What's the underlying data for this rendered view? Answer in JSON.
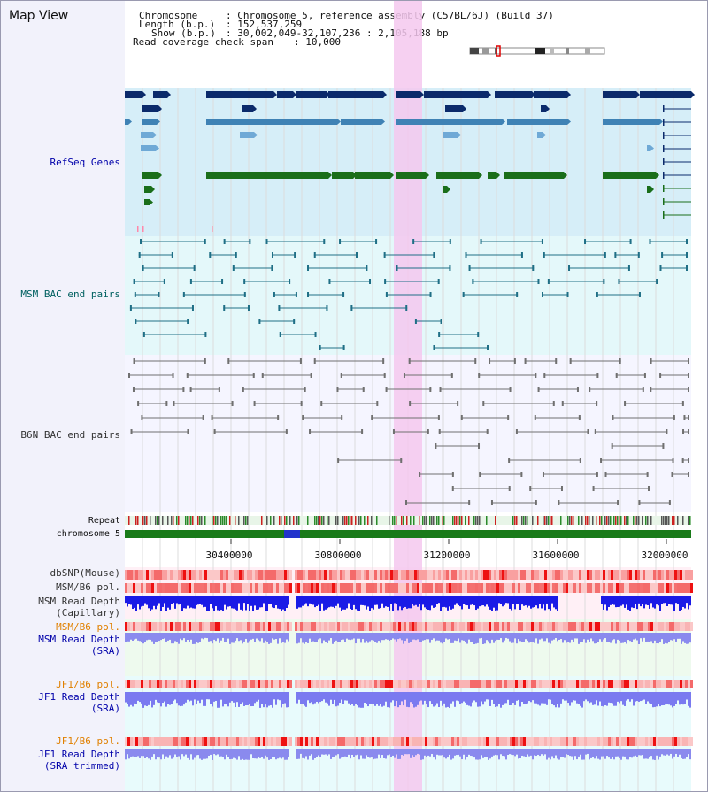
{
  "window": {
    "title": "Map View"
  },
  "header": {
    "chromosome_label": "Chromosome",
    "chromosome_value": ": Chromosome 5, reference assembly (C57BL/6J) (Build 37)",
    "length_label": "Length (b.p.)",
    "length_value": ": 152,537,259",
    "show_label": "Show (b.p.)",
    "show_value": ": 30,002,049-32,107,236 : 2,105,188 bp",
    "span_label": "Read coverage check span",
    "span_value": ": 10,000"
  },
  "tracks": {
    "refseq": "RefSeq Genes",
    "msm_bac": "MSM BAC end pairs",
    "b6n_bac": "B6N BAC end pairs",
    "repeat": "Repeat",
    "chromosome": "chromosome 5",
    "dbsnp": "dbSNP(Mouse)",
    "msm_b6_pol_1": "MSM/B6 pol.",
    "msm_read_depth_cap_1": "MSM Read Depth",
    "msm_read_depth_cap_2": "(Capillary)",
    "msm_b6_pol_2": "MSM/B6 pol.",
    "msm_read_depth_sra_1": "MSM Read Depth",
    "msm_read_depth_sra_2": "(SRA)",
    "jf1_b6_pol_1": "JF1/B6 pol.",
    "jf1_read_depth_sra_1": "JF1 Read Depth",
    "jf1_read_depth_sra_2": "(SRA)",
    "jf1_b6_pol_2": "JF1/B6 pol.",
    "jf1_read_depth_trim_1": "JF1 Read Depth",
    "jf1_read_depth_trim_2": "(SRA trimmed)"
  },
  "axis": {
    "ticks": [
      "30400000",
      "30800000",
      "31200000",
      "31600000",
      "32000000"
    ]
  },
  "colors": {
    "label_blue": "#0000aa",
    "label_teal": "#006060",
    "label_orange": "#e08000",
    "label_gray": "#333333",
    "highlight": "#f5c8ee",
    "refseq_bg": "#d6eef8",
    "msm_bg": "#e4f8fa",
    "b6n_bg": "#f5f5ff",
    "gene_dark": "#0b2a6b",
    "gene_mid": "#3f82b5",
    "gene_light": "#6fa9d6",
    "gene_green": "#1a6e1a",
    "chrom_green": "#197a19"
  }
}
